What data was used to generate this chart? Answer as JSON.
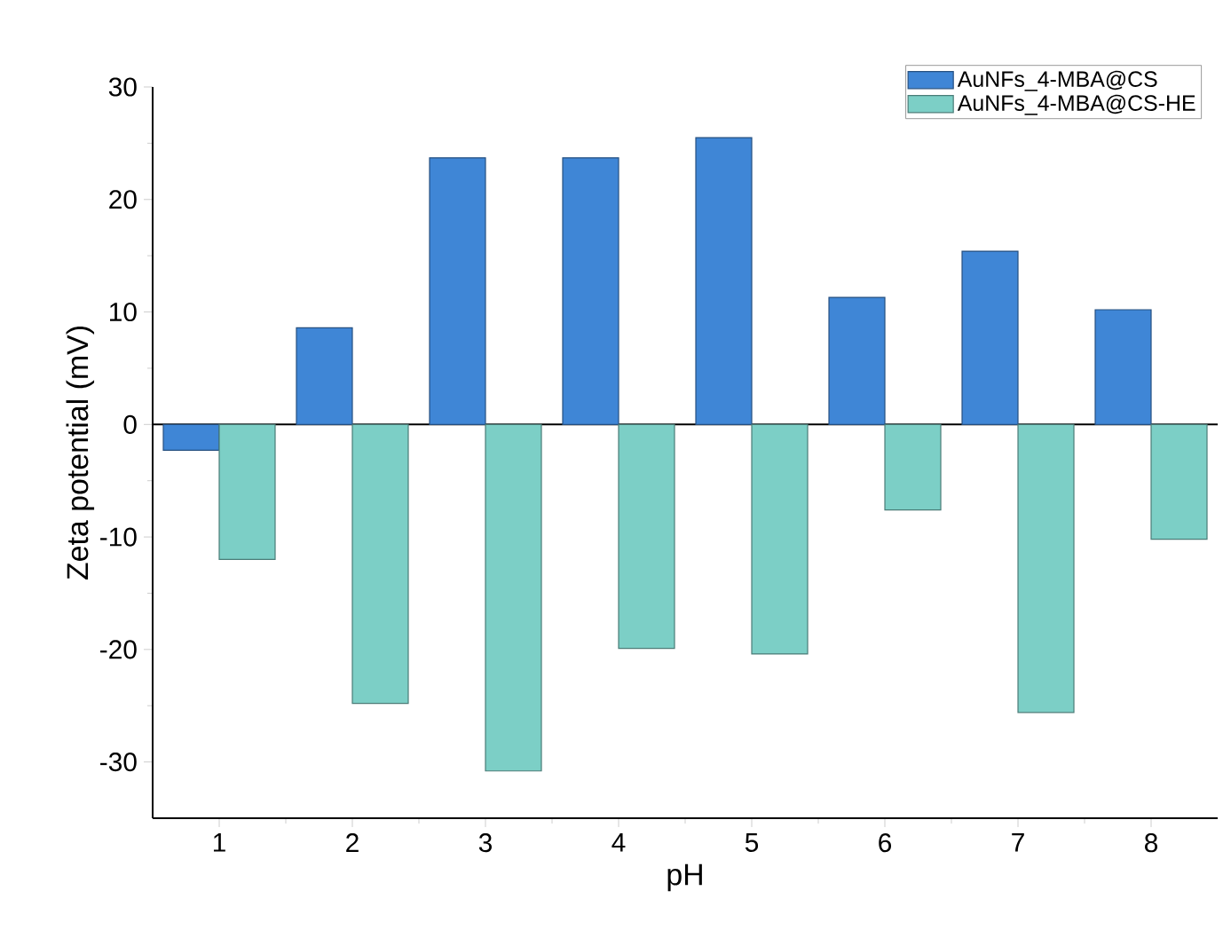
{
  "chart_data": {
    "type": "bar",
    "xlabel": "pH",
    "ylabel": "Zeta potential (mV)",
    "x": [
      1,
      2,
      3,
      4,
      5,
      6,
      7,
      8
    ],
    "series": [
      {
        "name": "AuNFs_4-MBA@CS",
        "color": "#3f86d6",
        "values": [
          -2.3,
          8.6,
          23.7,
          23.7,
          25.5,
          11.3,
          15.4,
          10.2
        ]
      },
      {
        "name": "AuNFs_4-MBA@CS-HE",
        "color": "#7ccfc6",
        "values": [
          -12.0,
          -24.8,
          -30.8,
          -19.9,
          -20.4,
          -7.6,
          -25.6,
          -10.2
        ]
      }
    ],
    "xlim": [
      0.5,
      8.5
    ],
    "ylim": [
      -35,
      30
    ],
    "xticks": [
      1,
      2,
      3,
      4,
      5,
      6,
      7,
      8
    ],
    "yticks": [
      -30,
      -20,
      -10,
      0,
      10,
      20,
      30
    ],
    "ref_lines": [
      {
        "axis": "y",
        "value": 0
      }
    ],
    "legend": "top right"
  }
}
